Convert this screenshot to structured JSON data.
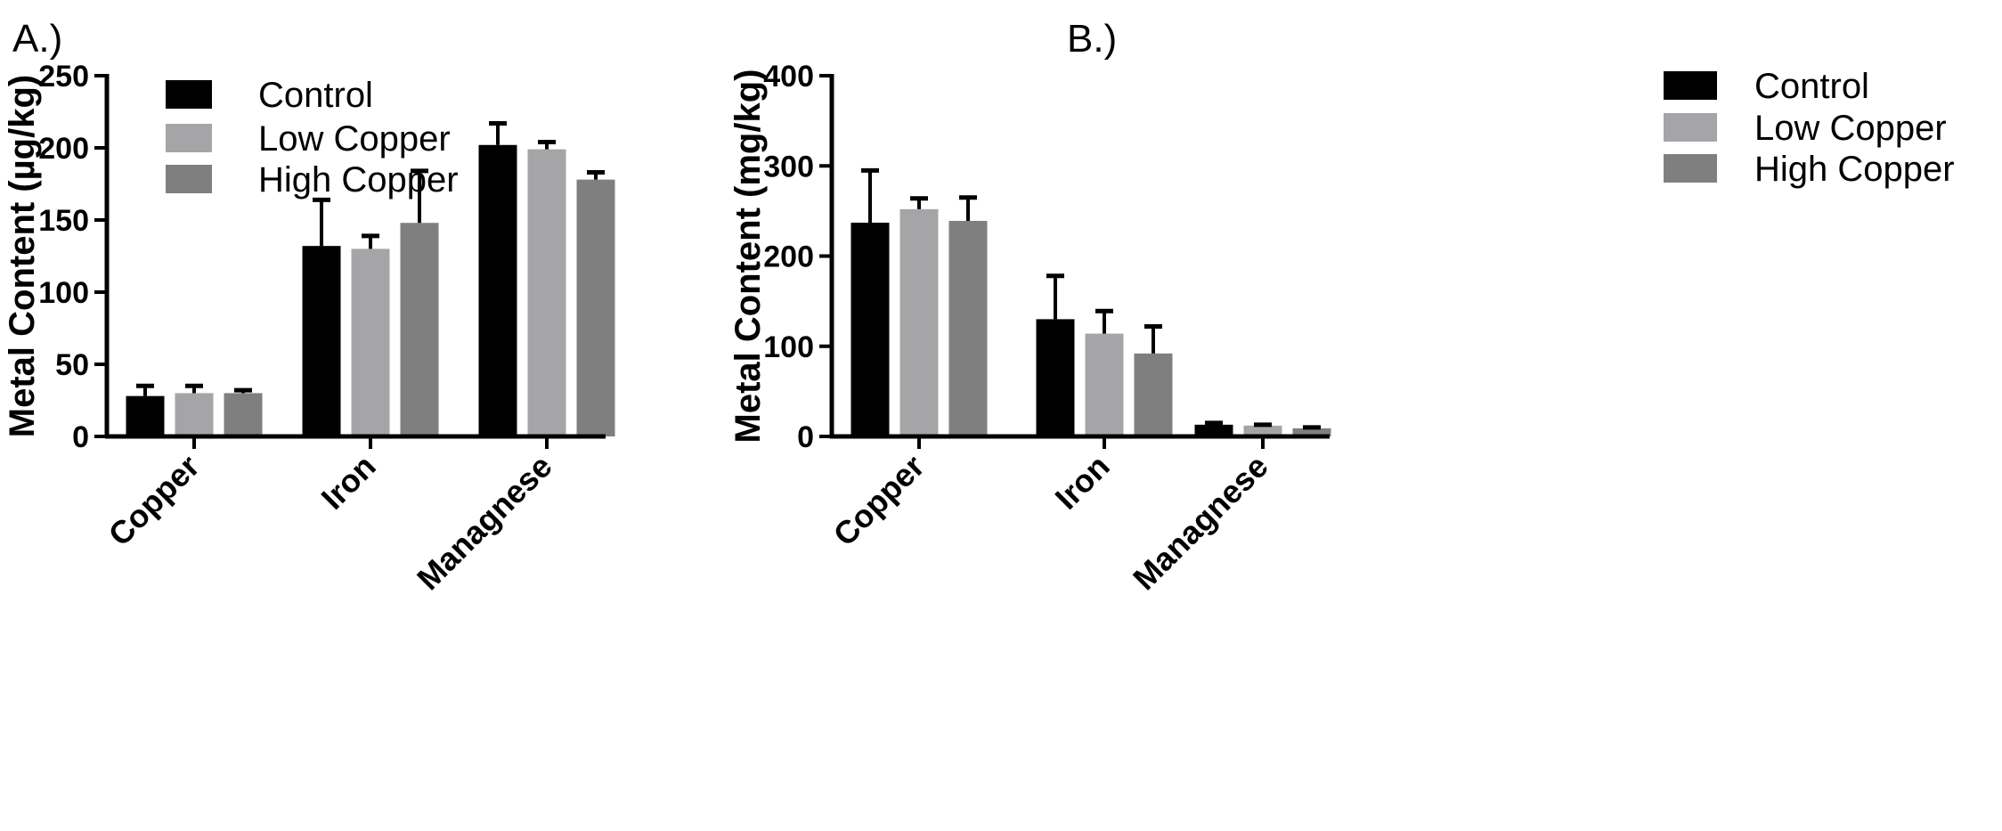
{
  "chart_data": [
    {
      "panel_label": "A.)",
      "type": "bar",
      "ylabel": "Metal Content (µg/kg)",
      "xlabel": "",
      "ylim": [
        0,
        250
      ],
      "yticks": [
        0,
        50,
        100,
        150,
        200,
        250
      ],
      "categories": [
        "Copper",
        "Iron",
        "Managnese"
      ],
      "legend_position": "top-left",
      "series": [
        {
          "name": "Control",
          "color": "#000000",
          "values": [
            28,
            132,
            202
          ],
          "errors": [
            7,
            32,
            15
          ]
        },
        {
          "name": "Low Copper",
          "color": "#a5a5a7",
          "values": [
            30,
            130,
            199
          ],
          "errors": [
            5,
            9,
            5
          ]
        },
        {
          "name": "High Copper",
          "color": "#7f7f7f",
          "values": [
            30,
            148,
            178
          ],
          "errors": [
            2,
            36,
            5
          ]
        }
      ]
    },
    {
      "panel_label": "B.)",
      "type": "bar",
      "ylabel": "Metal Content (mg/kg)",
      "xlabel": "",
      "ylim": [
        0,
        400
      ],
      "yticks": [
        0,
        100,
        200,
        300,
        400
      ],
      "categories": [
        "Copper",
        "Iron",
        "Managnese"
      ],
      "legend_position": "top-right",
      "series": [
        {
          "name": "Control",
          "color": "#000000",
          "values": [
            237,
            130,
            13
          ],
          "errors": [
            58,
            48,
            2
          ]
        },
        {
          "name": "Low Copper",
          "color": "#a5a5a7",
          "values": [
            252,
            114,
            12
          ],
          "errors": [
            12,
            25,
            1
          ]
        },
        {
          "name": "High Copper",
          "color": "#7f7f7f",
          "values": [
            239,
            92,
            9
          ],
          "errors": [
            26,
            30,
            1
          ]
        }
      ]
    }
  ]
}
